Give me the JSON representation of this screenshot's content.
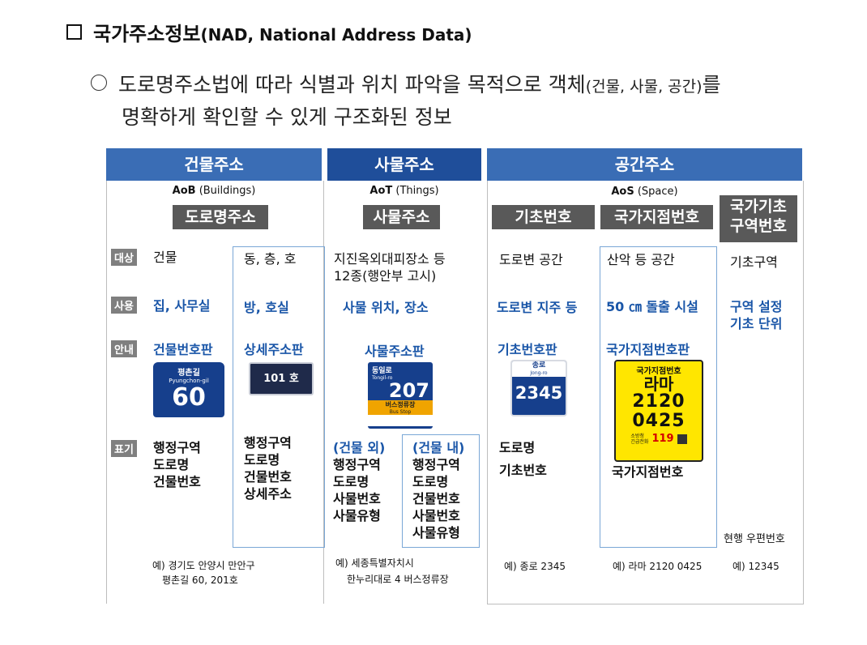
{
  "title": {
    "ko": "국가주소정보",
    "en": "(NAD, National Address Data)"
  },
  "paragraph": {
    "line1_a": "도로명주소법에 따라 식별과 위치 파악을 목적으로 객체",
    "line1_small": "(건물, 사물, 공간)",
    "line1_b": "를",
    "line2": "명확하게 확인할 수 있게 구조화된 정보"
  },
  "headers": {
    "building": "건물주소",
    "thing": "사물주소",
    "space": "공간주소"
  },
  "building": {
    "code": "AoB",
    "code_desc": "(Buildings)",
    "tag": "도로명주소",
    "label_target": "대상",
    "label_use": "사용",
    "label_guide": "안내",
    "label_mark": "표기",
    "target": "건물",
    "target_detail": "동, 층, 호",
    "use": "집, 사무실",
    "use_detail": "방, 호실",
    "guide": "건물번호판",
    "guide_detail": "상세주소판",
    "sign_top": "평촌길",
    "sign_en": "Pyungchon-gil",
    "sign_num": "60",
    "detail_sign": "101 호",
    "mark": [
      "행정구역",
      "도로명",
      "건물번호"
    ],
    "mark_detail": [
      "행정구역",
      "도로명",
      "건물번호",
      "상세주소"
    ],
    "example": [
      "예) 경기도 안양시 만안구",
      "평촌길 60, 201호"
    ]
  },
  "thing": {
    "code": "AoT",
    "code_desc": "(Things)",
    "tag": "사물주소",
    "target": [
      "지진옥외대피장소 등",
      "12종(행안부 고시)"
    ],
    "use": "사물 위치, 장소",
    "guide": "사물주소판",
    "sign_top": "동일로",
    "sign_en": "Tongil-ro",
    "sign_num": "207",
    "sign_sub": "버스정류장",
    "sign_sub_en": "Bus Stop",
    "outside_label": "(건물 외)",
    "inside_label": "(건물 내)",
    "outside": [
      "행정구역",
      "도로명",
      "사물번호",
      "사물유형"
    ],
    "inside": [
      "행정구역",
      "도로명",
      "건물번호",
      "사물번호",
      "사물유형"
    ],
    "example": [
      "예) 세종특별자치시",
      "한누리대로 4 버스정류장"
    ]
  },
  "space": {
    "code": "AoS",
    "code_desc": "(Space)",
    "tag_basic": "기초번호",
    "tag_point": "국가지점번호",
    "tag_zone": [
      "국가기초",
      "구역번호"
    ],
    "target_basic": "도로변 공간",
    "target_point": "산악 등 공간",
    "target_zone": "기초구역",
    "use_basic": "도로변 지주 등",
    "use_point": "50 ㎝ 돌출 시설",
    "use_zone": [
      "구역 설정",
      "기초 단위"
    ],
    "guide_basic": "기초번호판",
    "guide_point": "국가지점번호판",
    "basic_sign_top": "종로",
    "basic_sign_en": "Jong-ro",
    "basic_sign_num": "2345",
    "point_sign_title": "국가지점번호",
    "point_sign_letters": "라마",
    "point_sign_l1": "2120",
    "point_sign_l2": "0425",
    "point_sign_fire": "소방청",
    "point_sign_call": "긴급전화",
    "point_sign_119": "119",
    "mark_basic": [
      "도로명",
      "기초번호"
    ],
    "mark_point": "국가지점번호",
    "zone_note": "현행 우편번호",
    "example_basic": "예) 종로 2345",
    "example_point": "예) 라마 2120 0425",
    "example_zone": "예) 12345"
  }
}
